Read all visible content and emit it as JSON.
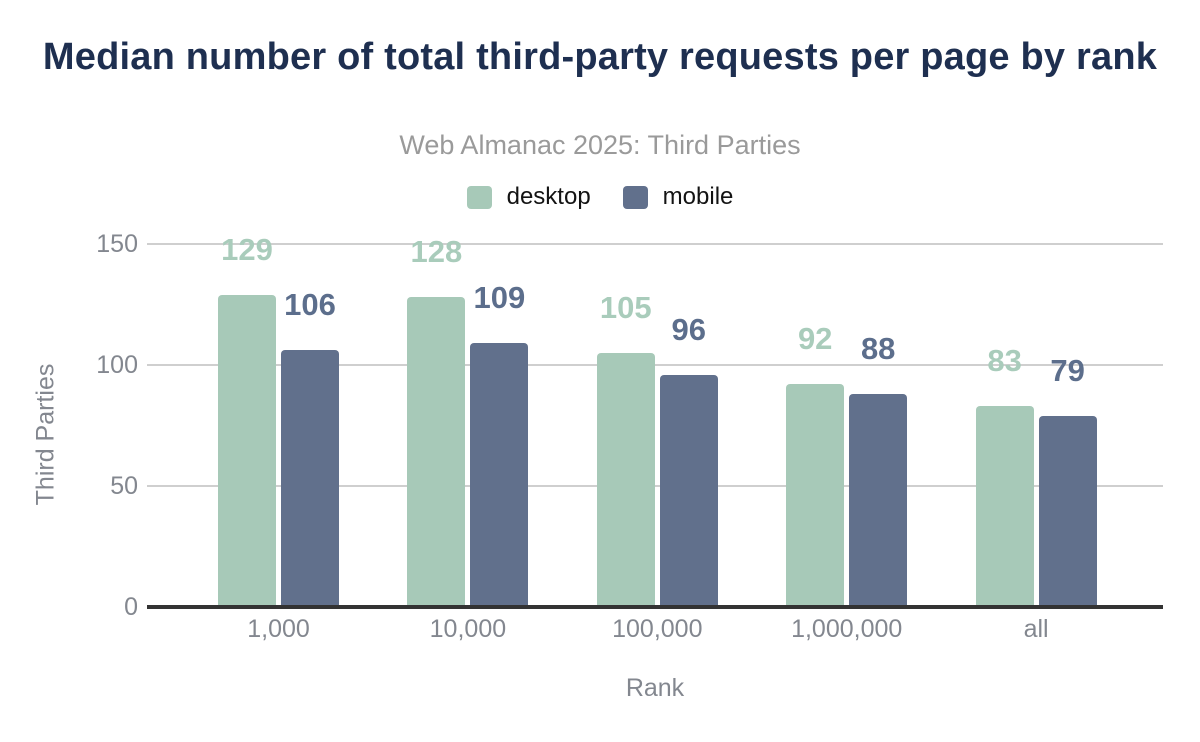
{
  "title": "Median number of total third-party requests per page by rank",
  "subtitle": "Web Almanac 2025: Third Parties",
  "legend": {
    "desktop_label": "desktop",
    "mobile_label": "mobile"
  },
  "colors": {
    "desktop": "#a7c9b8",
    "mobile": "#61708c",
    "desktop_label": "#a9ccbb",
    "mobile_label": "#5c6e8c",
    "title": "#1e2f50",
    "subtitle": "#9a9a9a",
    "axis_text": "#83878f",
    "gridline": "#cfcfcf",
    "baseline": "#333333"
  },
  "chart_data": {
    "type": "bar",
    "title": "Median number of total third-party requests per page by rank",
    "subtitle": "Web Almanac 2025: Third Parties",
    "categories": [
      "1,000",
      "10,000",
      "100,000",
      "1,000,000",
      "all"
    ],
    "series": [
      {
        "name": "desktop",
        "color": "#a7c9b8",
        "label_color": "#a9ccbb",
        "values": [
          129,
          128,
          105,
          92,
          83
        ]
      },
      {
        "name": "mobile",
        "color": "#61708c",
        "label_color": "#5c6e8c",
        "values": [
          106,
          109,
          96,
          88,
          79
        ]
      }
    ],
    "xlabel": "Rank",
    "ylabel": "Third Parties",
    "yticks": [
      0,
      50,
      100,
      150
    ],
    "ylim": [
      0,
      150
    ],
    "grid": true,
    "legend_position": "top",
    "data_labels": true
  }
}
